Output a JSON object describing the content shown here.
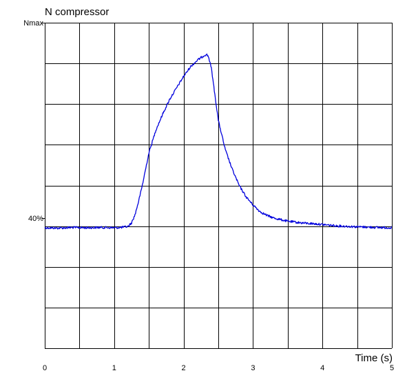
{
  "chart_data": {
    "type": "line",
    "title": "N compressor",
    "xlabel": "Time (s)",
    "ylabel": "",
    "xlim": [
      0,
      5
    ],
    "ylim": [
      0,
      100
    ],
    "x_ticks": [
      "0",
      "1",
      "2",
      "3",
      "4",
      "5"
    ],
    "y_tick_labels": [
      {
        "value": 100,
        "label": "Nmax"
      },
      {
        "value": 40,
        "label": "40%"
      }
    ],
    "grid": true,
    "series_color": "#0000dd",
    "series": [
      {
        "x": [
          0,
          0.2,
          0.4,
          0.6,
          0.8,
          1.0,
          1.1,
          1.2,
          1.25,
          1.3,
          1.35,
          1.4,
          1.5,
          1.6,
          1.7,
          1.8,
          1.9,
          2.0,
          2.1,
          2.2,
          2.3,
          2.33,
          2.36,
          2.4,
          2.5,
          2.6,
          2.7,
          2.8,
          2.9,
          3.0,
          3.1,
          3.2,
          3.3,
          3.5,
          3.7,
          3.9,
          4.0,
          4.2,
          4.5,
          4.8,
          5.0
        ],
        "y": [
          37,
          36.9,
          37.1,
          37,
          37.1,
          37,
          37.1,
          37.4,
          38.5,
          41,
          45,
          49.5,
          60,
          67,
          72,
          76.5,
          80,
          83.5,
          86.5,
          88.5,
          90,
          90.3,
          89.5,
          86,
          70,
          61,
          55,
          50,
          46.5,
          44,
          42,
          40.8,
          40,
          39,
          38.5,
          38.2,
          38,
          37.6,
          37.3,
          37.1,
          37
        ]
      }
    ]
  }
}
